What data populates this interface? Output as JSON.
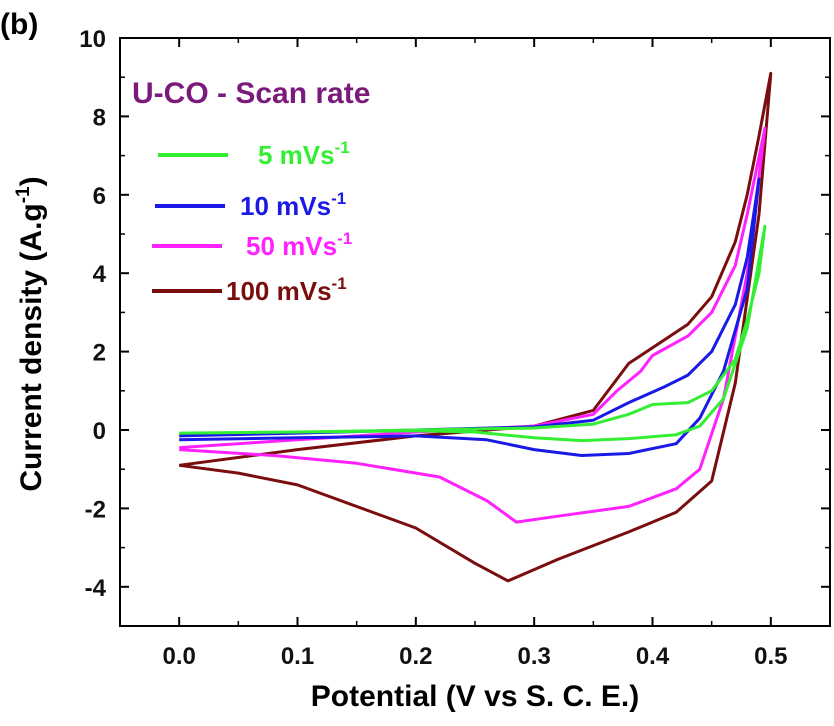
{
  "panel_label": "(b)",
  "chart_data": {
    "type": "line",
    "title": "U-CO - Scan rate",
    "title_color": "#7a1a7a",
    "xlabel": "Potential (V vs S. C. E.)",
    "ylabel_main": "Current density (A.g",
    "ylabel_sup": "-1",
    "ylabel_end": ")",
    "xlim": [
      -0.05,
      0.55
    ],
    "ylim": [
      -5,
      10
    ],
    "xticks": [
      0.0,
      0.1,
      0.2,
      0.3,
      0.4,
      0.5
    ],
    "xtick_labels": [
      "0.0",
      "0.1",
      "0.2",
      "0.3",
      "0.4",
      "0.5"
    ],
    "yticks": [
      -4,
      -2,
      0,
      2,
      4,
      6,
      8,
      10
    ],
    "ytick_labels": [
      "-4",
      "-2",
      "0",
      "2",
      "4",
      "6",
      "8",
      "10"
    ],
    "legend_position": "upper-left",
    "series": [
      {
        "name": "5 mVs",
        "name_sup": "-1",
        "color": "#33ee33",
        "anodic": [
          [
            0.0,
            -0.08
          ],
          [
            0.1,
            -0.05
          ],
          [
            0.2,
            0.0
          ],
          [
            0.3,
            0.05
          ],
          [
            0.35,
            0.15
          ],
          [
            0.38,
            0.4
          ],
          [
            0.4,
            0.65
          ],
          [
            0.43,
            0.7
          ],
          [
            0.45,
            1.0
          ],
          [
            0.47,
            1.8
          ],
          [
            0.48,
            2.8
          ],
          [
            0.49,
            4.0
          ],
          [
            0.495,
            5.2
          ]
        ],
        "cathodic": [
          [
            0.495,
            5.2
          ],
          [
            0.48,
            2.6
          ],
          [
            0.46,
            0.8
          ],
          [
            0.44,
            0.1
          ],
          [
            0.42,
            -0.12
          ],
          [
            0.38,
            -0.22
          ],
          [
            0.34,
            -0.27
          ],
          [
            0.3,
            -0.2
          ],
          [
            0.25,
            -0.05
          ],
          [
            0.2,
            -0.02
          ],
          [
            0.1,
            -0.05
          ],
          [
            0.0,
            -0.08
          ]
        ]
      },
      {
        "name": "10 mVs",
        "name_sup": "-1",
        "color": "#1a1ae6",
        "anodic": [
          [
            0.0,
            -0.15
          ],
          [
            0.1,
            -0.08
          ],
          [
            0.2,
            0.0
          ],
          [
            0.3,
            0.08
          ],
          [
            0.35,
            0.25
          ],
          [
            0.38,
            0.7
          ],
          [
            0.41,
            1.1
          ],
          [
            0.43,
            1.4
          ],
          [
            0.45,
            2.0
          ],
          [
            0.47,
            3.2
          ],
          [
            0.48,
            4.4
          ],
          [
            0.49,
            6.4
          ]
        ],
        "cathodic": [
          [
            0.49,
            6.4
          ],
          [
            0.48,
            3.6
          ],
          [
            0.46,
            1.5
          ],
          [
            0.44,
            0.3
          ],
          [
            0.42,
            -0.35
          ],
          [
            0.38,
            -0.6
          ],
          [
            0.34,
            -0.65
          ],
          [
            0.3,
            -0.5
          ],
          [
            0.26,
            -0.25
          ],
          [
            0.2,
            -0.15
          ],
          [
            0.1,
            -0.2
          ],
          [
            0.0,
            -0.25
          ]
        ]
      },
      {
        "name": "50 mVs",
        "name_sup": "-1",
        "color": "#ff22ff",
        "anodic": [
          [
            0.0,
            -0.45
          ],
          [
            0.1,
            -0.25
          ],
          [
            0.2,
            -0.05
          ],
          [
            0.3,
            0.1
          ],
          [
            0.35,
            0.4
          ],
          [
            0.37,
            1.0
          ],
          [
            0.39,
            1.5
          ],
          [
            0.4,
            1.9
          ],
          [
            0.43,
            2.4
          ],
          [
            0.45,
            3.0
          ],
          [
            0.47,
            4.2
          ],
          [
            0.48,
            5.5
          ],
          [
            0.495,
            7.7
          ]
        ],
        "cathodic": [
          [
            0.495,
            7.7
          ],
          [
            0.48,
            4.0
          ],
          [
            0.46,
            0.8
          ],
          [
            0.44,
            -1.0
          ],
          [
            0.42,
            -1.5
          ],
          [
            0.38,
            -1.95
          ],
          [
            0.32,
            -2.2
          ],
          [
            0.285,
            -2.35
          ],
          [
            0.26,
            -1.8
          ],
          [
            0.22,
            -1.2
          ],
          [
            0.15,
            -0.85
          ],
          [
            0.08,
            -0.65
          ],
          [
            0.0,
            -0.5
          ]
        ]
      },
      {
        "name": "100 mVs",
        "name_sup": "-1",
        "color": "#7a0d0d",
        "anodic": [
          [
            0.0,
            -0.9
          ],
          [
            0.1,
            -0.5
          ],
          [
            0.2,
            -0.15
          ],
          [
            0.3,
            0.1
          ],
          [
            0.35,
            0.5
          ],
          [
            0.37,
            1.3
          ],
          [
            0.38,
            1.7
          ],
          [
            0.4,
            2.1
          ],
          [
            0.43,
            2.7
          ],
          [
            0.45,
            3.4
          ],
          [
            0.47,
            4.8
          ],
          [
            0.48,
            6.0
          ],
          [
            0.49,
            7.5
          ],
          [
            0.5,
            9.1
          ]
        ],
        "cathodic": [
          [
            0.5,
            9.1
          ],
          [
            0.49,
            5.5
          ],
          [
            0.47,
            1.2
          ],
          [
            0.45,
            -1.3
          ],
          [
            0.42,
            -2.1
          ],
          [
            0.38,
            -2.6
          ],
          [
            0.32,
            -3.3
          ],
          [
            0.278,
            -3.85
          ],
          [
            0.25,
            -3.4
          ],
          [
            0.2,
            -2.5
          ],
          [
            0.1,
            -1.4
          ],
          [
            0.05,
            -1.1
          ],
          [
            0.0,
            -0.9
          ]
        ]
      }
    ]
  }
}
